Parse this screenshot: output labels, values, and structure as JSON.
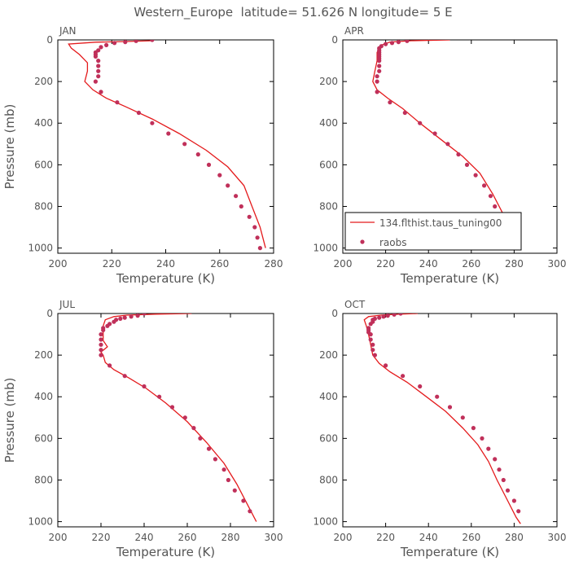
{
  "figure": {
    "title": "Western_Europe  latitude= 51.626 N longitude= 5 E"
  },
  "chart_data": [
    {
      "type": "line",
      "panel_label": "JAN",
      "xlabel": "Temperature (K)",
      "ylabel": "Pressure (mb)",
      "xlim": [
        200,
        280
      ],
      "ylim": [
        1025,
        0
      ],
      "xticks": [
        200,
        220,
        240,
        260,
        280
      ],
      "yticks": [
        0,
        200,
        400,
        600,
        800,
        1000
      ],
      "series": [
        {
          "kind": "line",
          "color": "#e41a1c",
          "points": [
            [
              235,
              4
            ],
            [
              225,
              8
            ],
            [
              214,
              11
            ],
            [
              204,
              20
            ],
            [
              205,
              40
            ],
            [
              208,
              70
            ],
            [
              211,
              110
            ],
            [
              211,
              150
            ],
            [
              210,
              200
            ],
            [
              213,
              240
            ],
            [
              218,
              280
            ],
            [
              225,
              320
            ],
            [
              235,
              380
            ],
            [
              245,
              450
            ],
            [
              255,
              530
            ],
            [
              263,
              610
            ],
            [
              269,
              700
            ],
            [
              272,
              800
            ],
            [
              275,
              900
            ],
            [
              277,
              1000
            ]
          ]
        },
        {
          "kind": "scatter",
          "color": "#c0305a",
          "points": [
            [
              235,
              0
            ],
            [
              229,
              5
            ],
            [
              225,
              10
            ],
            [
              221,
              15
            ],
            [
              218,
              25
            ],
            [
              216,
              35
            ],
            [
              215,
              50
            ],
            [
              214,
              60
            ],
            [
              214,
              70
            ],
            [
              214,
              80
            ],
            [
              215,
              100
            ],
            [
              215,
              125
            ],
            [
              215,
              150
            ],
            [
              215,
              175
            ],
            [
              214,
              200
            ],
            [
              216,
              250
            ],
            [
              222,
              300
            ],
            [
              230,
              350
            ],
            [
              235,
              400
            ],
            [
              241,
              450
            ],
            [
              247,
              500
            ],
            [
              252,
              550
            ],
            [
              256,
              600
            ],
            [
              260,
              650
            ],
            [
              263,
              700
            ],
            [
              266,
              750
            ],
            [
              268,
              800
            ],
            [
              271,
              850
            ],
            [
              273,
              900
            ],
            [
              274,
              950
            ],
            [
              275,
              1000
            ]
          ]
        }
      ]
    },
    {
      "type": "line",
      "panel_label": "APR",
      "xlabel": "Temperature (K)",
      "xlim": [
        200,
        300
      ],
      "ylim": [
        1025,
        0
      ],
      "xticks": [
        200,
        220,
        240,
        260,
        280,
        300
      ],
      "yticks": [
        0,
        200,
        400,
        600,
        800,
        1000
      ],
      "legend": {
        "placement": "lower-right",
        "entries": [
          {
            "label": "134.flthist.taus_tuning00",
            "kind": "line",
            "color": "#e41a1c"
          },
          {
            "label": "raobs",
            "kind": "scatter",
            "color": "#c0305a"
          }
        ]
      },
      "series": [
        {
          "kind": "line",
          "color": "#e41a1c",
          "points": [
            [
              250,
              0
            ],
            [
              232,
              4
            ],
            [
              222,
              10
            ],
            [
              218,
              25
            ],
            [
              216,
              60
            ],
            [
              216,
              100
            ],
            [
              215,
              150
            ],
            [
              214,
              200
            ],
            [
              216,
              240
            ],
            [
              221,
              280
            ],
            [
              228,
              330
            ],
            [
              236,
              400
            ],
            [
              246,
              480
            ],
            [
              256,
              560
            ],
            [
              264,
              640
            ],
            [
              270,
              740
            ],
            [
              275,
              840
            ],
            [
              279,
              940
            ],
            [
              282,
              1010
            ]
          ]
        },
        {
          "kind": "scatter",
          "color": "#c0305a",
          "points": [
            [
              230,
              5
            ],
            [
              226,
              10
            ],
            [
              223,
              15
            ],
            [
              220,
              20
            ],
            [
              218,
              30
            ],
            [
              217,
              40
            ],
            [
              217,
              50
            ],
            [
              217,
              60
            ],
            [
              217,
              70
            ],
            [
              217,
              80
            ],
            [
              217,
              90
            ],
            [
              217,
              100
            ],
            [
              217,
              125
            ],
            [
              217,
              150
            ],
            [
              216,
              175
            ],
            [
              216,
              200
            ],
            [
              216,
              250
            ],
            [
              222,
              300
            ],
            [
              229,
              350
            ],
            [
              236,
              400
            ],
            [
              243,
              450
            ],
            [
              249,
              500
            ],
            [
              254,
              550
            ],
            [
              258,
              600
            ],
            [
              262,
              650
            ],
            [
              266,
              700
            ],
            [
              269,
              750
            ],
            [
              271,
              800
            ],
            [
              274,
              850
            ],
            [
              276,
              900
            ],
            [
              280,
              950
            ]
          ]
        }
      ]
    },
    {
      "type": "line",
      "panel_label": "JUL",
      "xlabel": "Temperature (K)",
      "ylabel": "Pressure (mb)",
      "xlim": [
        200,
        300
      ],
      "ylim": [
        1025,
        0
      ],
      "xticks": [
        200,
        220,
        240,
        260,
        280,
        300
      ],
      "yticks": [
        0,
        200,
        400,
        600,
        800,
        1000
      ],
      "series": [
        {
          "kind": "line",
          "color": "#e41a1c",
          "points": [
            [
              262,
              0
            ],
            [
              245,
              3
            ],
            [
              232,
              8
            ],
            [
              226,
              15
            ],
            [
              222,
              30
            ],
            [
              221,
              60
            ],
            [
              221,
              100
            ],
            [
              221,
              130
            ],
            [
              223,
              160
            ],
            [
              220,
              185
            ],
            [
              221,
              200
            ],
            [
              222,
              235
            ],
            [
              226,
              270
            ],
            [
              233,
              310
            ],
            [
              241,
              360
            ],
            [
              250,
              430
            ],
            [
              260,
              520
            ],
            [
              269,
              620
            ],
            [
              277,
              720
            ],
            [
              283,
              820
            ],
            [
              288,
              920
            ],
            [
              292,
              1000
            ]
          ]
        },
        {
          "kind": "scatter",
          "color": "#c0305a",
          "points": [
            [
              240,
              0
            ],
            [
              237,
              10
            ],
            [
              234,
              15
            ],
            [
              231,
              20
            ],
            [
              229,
              25
            ],
            [
              227,
              30
            ],
            [
              226,
              40
            ],
            [
              224,
              50
            ],
            [
              223,
              60
            ],
            [
              221,
              70
            ],
            [
              221,
              80
            ],
            [
              220,
              100
            ],
            [
              220,
              125
            ],
            [
              220,
              150
            ],
            [
              220,
              175
            ],
            [
              220,
              200
            ],
            [
              224,
              250
            ],
            [
              231,
              300
            ],
            [
              240,
              350
            ],
            [
              247,
              400
            ],
            [
              253,
              450
            ],
            [
              259,
              500
            ],
            [
              263,
              550
            ],
            [
              266,
              600
            ],
            [
              270,
              650
            ],
            [
              273,
              700
            ],
            [
              277,
              750
            ],
            [
              279,
              800
            ],
            [
              282,
              850
            ],
            [
              286,
              900
            ],
            [
              289,
              950
            ]
          ]
        }
      ]
    },
    {
      "type": "line",
      "panel_label": "OCT",
      "xlabel": "Temperature (K)",
      "xlim": [
        200,
        300
      ],
      "ylim": [
        1025,
        0
      ],
      "xticks": [
        200,
        220,
        240,
        260,
        280,
        300
      ],
      "yticks": [
        0,
        200,
        400,
        600,
        800,
        1000
      ],
      "series": [
        {
          "kind": "line",
          "color": "#e41a1c",
          "points": [
            [
              235,
              0
            ],
            [
              225,
              4
            ],
            [
              218,
              8
            ],
            [
              212,
              15
            ],
            [
              210,
              30
            ],
            [
              211,
              60
            ],
            [
              212,
              100
            ],
            [
              213,
              150
            ],
            [
              214,
              200
            ],
            [
              217,
              240
            ],
            [
              222,
              280
            ],
            [
              230,
              330
            ],
            [
              239,
              400
            ],
            [
              248,
              470
            ],
            [
              256,
              550
            ],
            [
              263,
              630
            ],
            [
              268,
              710
            ],
            [
              272,
              800
            ],
            [
              277,
              900
            ],
            [
              281,
              980
            ],
            [
              283,
              1010
            ]
          ]
        },
        {
          "kind": "scatter",
          "color": "#c0305a",
          "points": [
            [
              227,
              0
            ],
            [
              224,
              5
            ],
            [
              221,
              10
            ],
            [
              219,
              15
            ],
            [
              217,
              20
            ],
            [
              215,
              25
            ],
            [
              214,
              30
            ],
            [
              214,
              40
            ],
            [
              213,
              50
            ],
            [
              212,
              70
            ],
            [
              212,
              80
            ],
            [
              212,
              90
            ],
            [
              213,
              100
            ],
            [
              213,
              125
            ],
            [
              214,
              150
            ],
            [
              214,
              175
            ],
            [
              215,
              200
            ],
            [
              220,
              250
            ],
            [
              228,
              300
            ],
            [
              236,
              350
            ],
            [
              244,
              400
            ],
            [
              250,
              450
            ],
            [
              256,
              500
            ],
            [
              261,
              550
            ],
            [
              265,
              600
            ],
            [
              268,
              650
            ],
            [
              271,
              700
            ],
            [
              273,
              750
            ],
            [
              275,
              800
            ],
            [
              277,
              850
            ],
            [
              280,
              900
            ],
            [
              282,
              950
            ]
          ]
        }
      ]
    }
  ]
}
